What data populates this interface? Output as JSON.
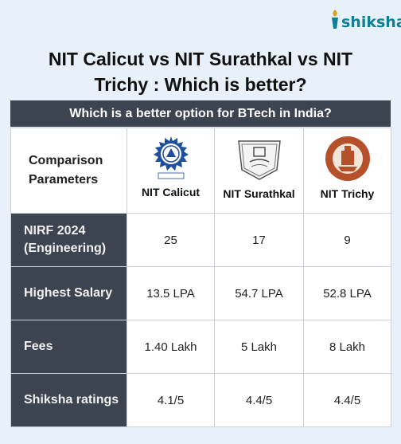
{
  "brand": {
    "name": "shiksha",
    "icon": "shiksha-lamp-icon",
    "color": "#0f7f91"
  },
  "title": "NIT Calicut vs NIT Surathkal vs NIT Trichy : Which is better?",
  "banner": "Which is a better option for BTech in India?",
  "table": {
    "header_label": "Comparison Parameters",
    "columns": [
      {
        "name": "NIT Calicut",
        "logo": "nit-calicut-logo"
      },
      {
        "name": "NIT Surathkal",
        "logo": "nit-surathkal-logo"
      },
      {
        "name": "NIT Trichy",
        "logo": "nit-trichy-logo"
      }
    ],
    "rows": [
      {
        "param": "NIRF 2024 (Engineering)",
        "values": [
          "25",
          "17",
          "9"
        ]
      },
      {
        "param": "Highest Salary",
        "values": [
          "13.5 LPA",
          "54.7 LPA",
          "52.8 LPA"
        ]
      },
      {
        "param": "Fees",
        "values": [
          "1.40 Lakh",
          "5 Lakh",
          "8 Lakh"
        ]
      },
      {
        "param": "Shiksha ratings",
        "values": [
          "4.1/5",
          "4.4/5",
          "4.4/5"
        ]
      }
    ]
  },
  "colors": {
    "dark": "#3b4450",
    "background": "#e8f0fa",
    "trichy": "#b5502a",
    "calicut": "#1f4f9b"
  }
}
